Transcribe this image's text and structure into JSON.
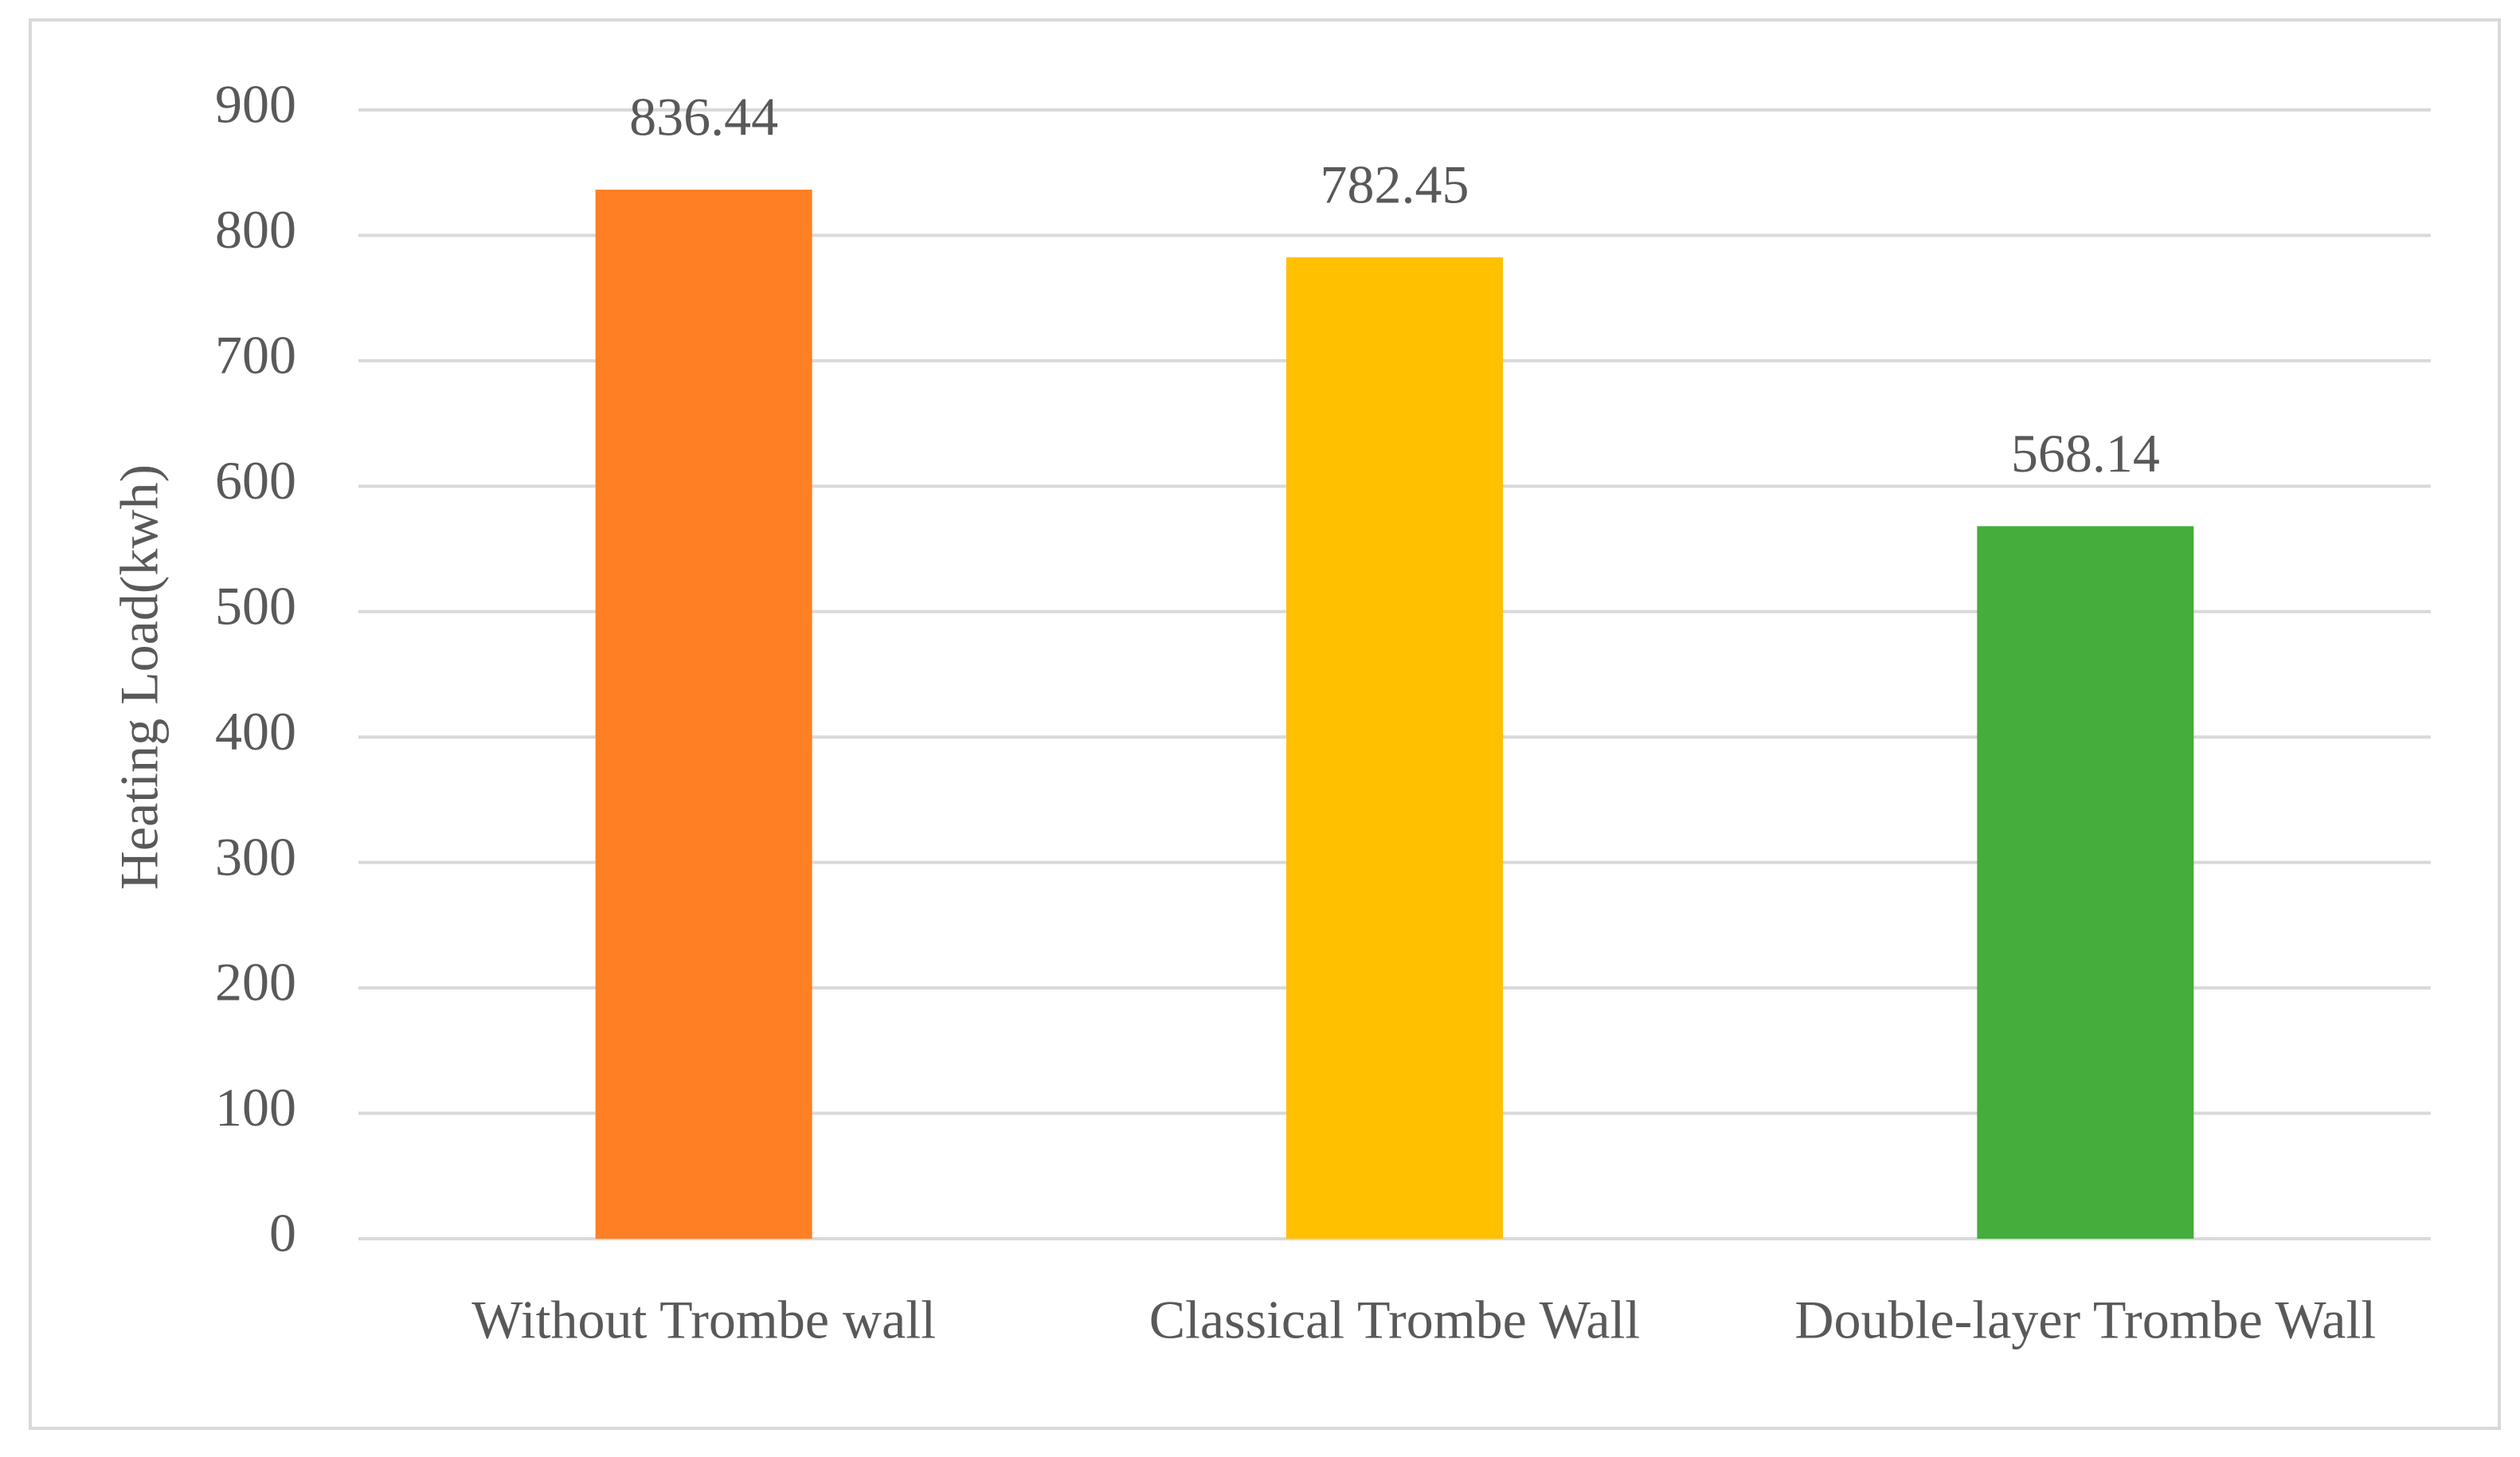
{
  "chart_data": {
    "type": "bar",
    "y_label": "Heating Load(kwh)",
    "categories": [
      "Without Trombe wall",
      "Classical Trombe Wall",
      "Double-layer Trombe Wall"
    ],
    "values": [
      836.44,
      782.45,
      568.14
    ],
    "colors": [
      "#fe7f24",
      "#ffc000",
      "#44ad3b"
    ],
    "ylim": [
      0,
      900
    ],
    "yticks": [
      0,
      100,
      200,
      300,
      400,
      500,
      600,
      700,
      800,
      900
    ],
    "grid": true
  }
}
